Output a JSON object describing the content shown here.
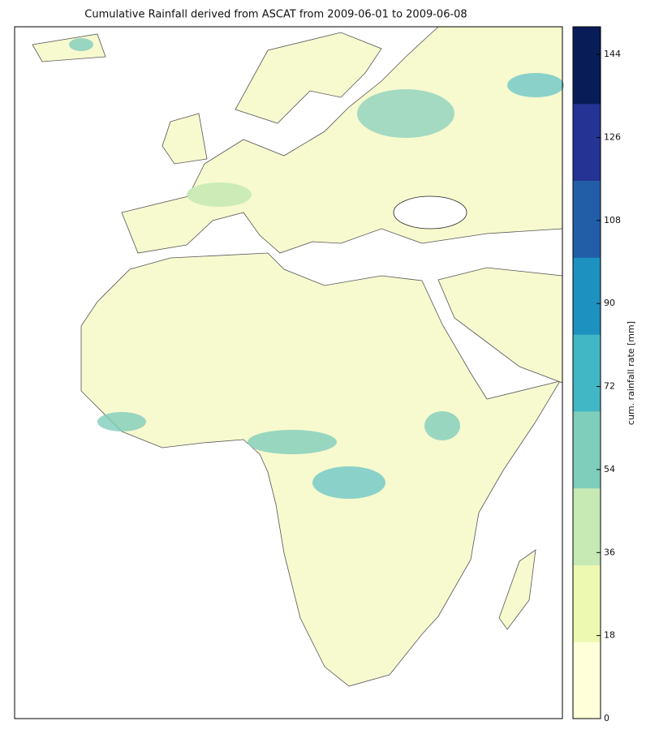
{
  "map": {
    "title": "Cumulative Rainfall derived from ASCAT from 2009-06-01 to 2009-06-08",
    "colorbar": {
      "label": "cum. rainfall rate [mm]",
      "lim": [
        0,
        150
      ],
      "ticks": [
        0,
        18,
        36,
        54,
        72,
        90,
        108,
        126,
        144
      ],
      "colors": [
        "#ffffd9",
        "#edf8b1",
        "#c7e9b4",
        "#7fcdbb",
        "#41b6c4",
        "#1d91c0",
        "#225ea8",
        "#253494",
        "#081d58"
      ]
    }
  }
}
